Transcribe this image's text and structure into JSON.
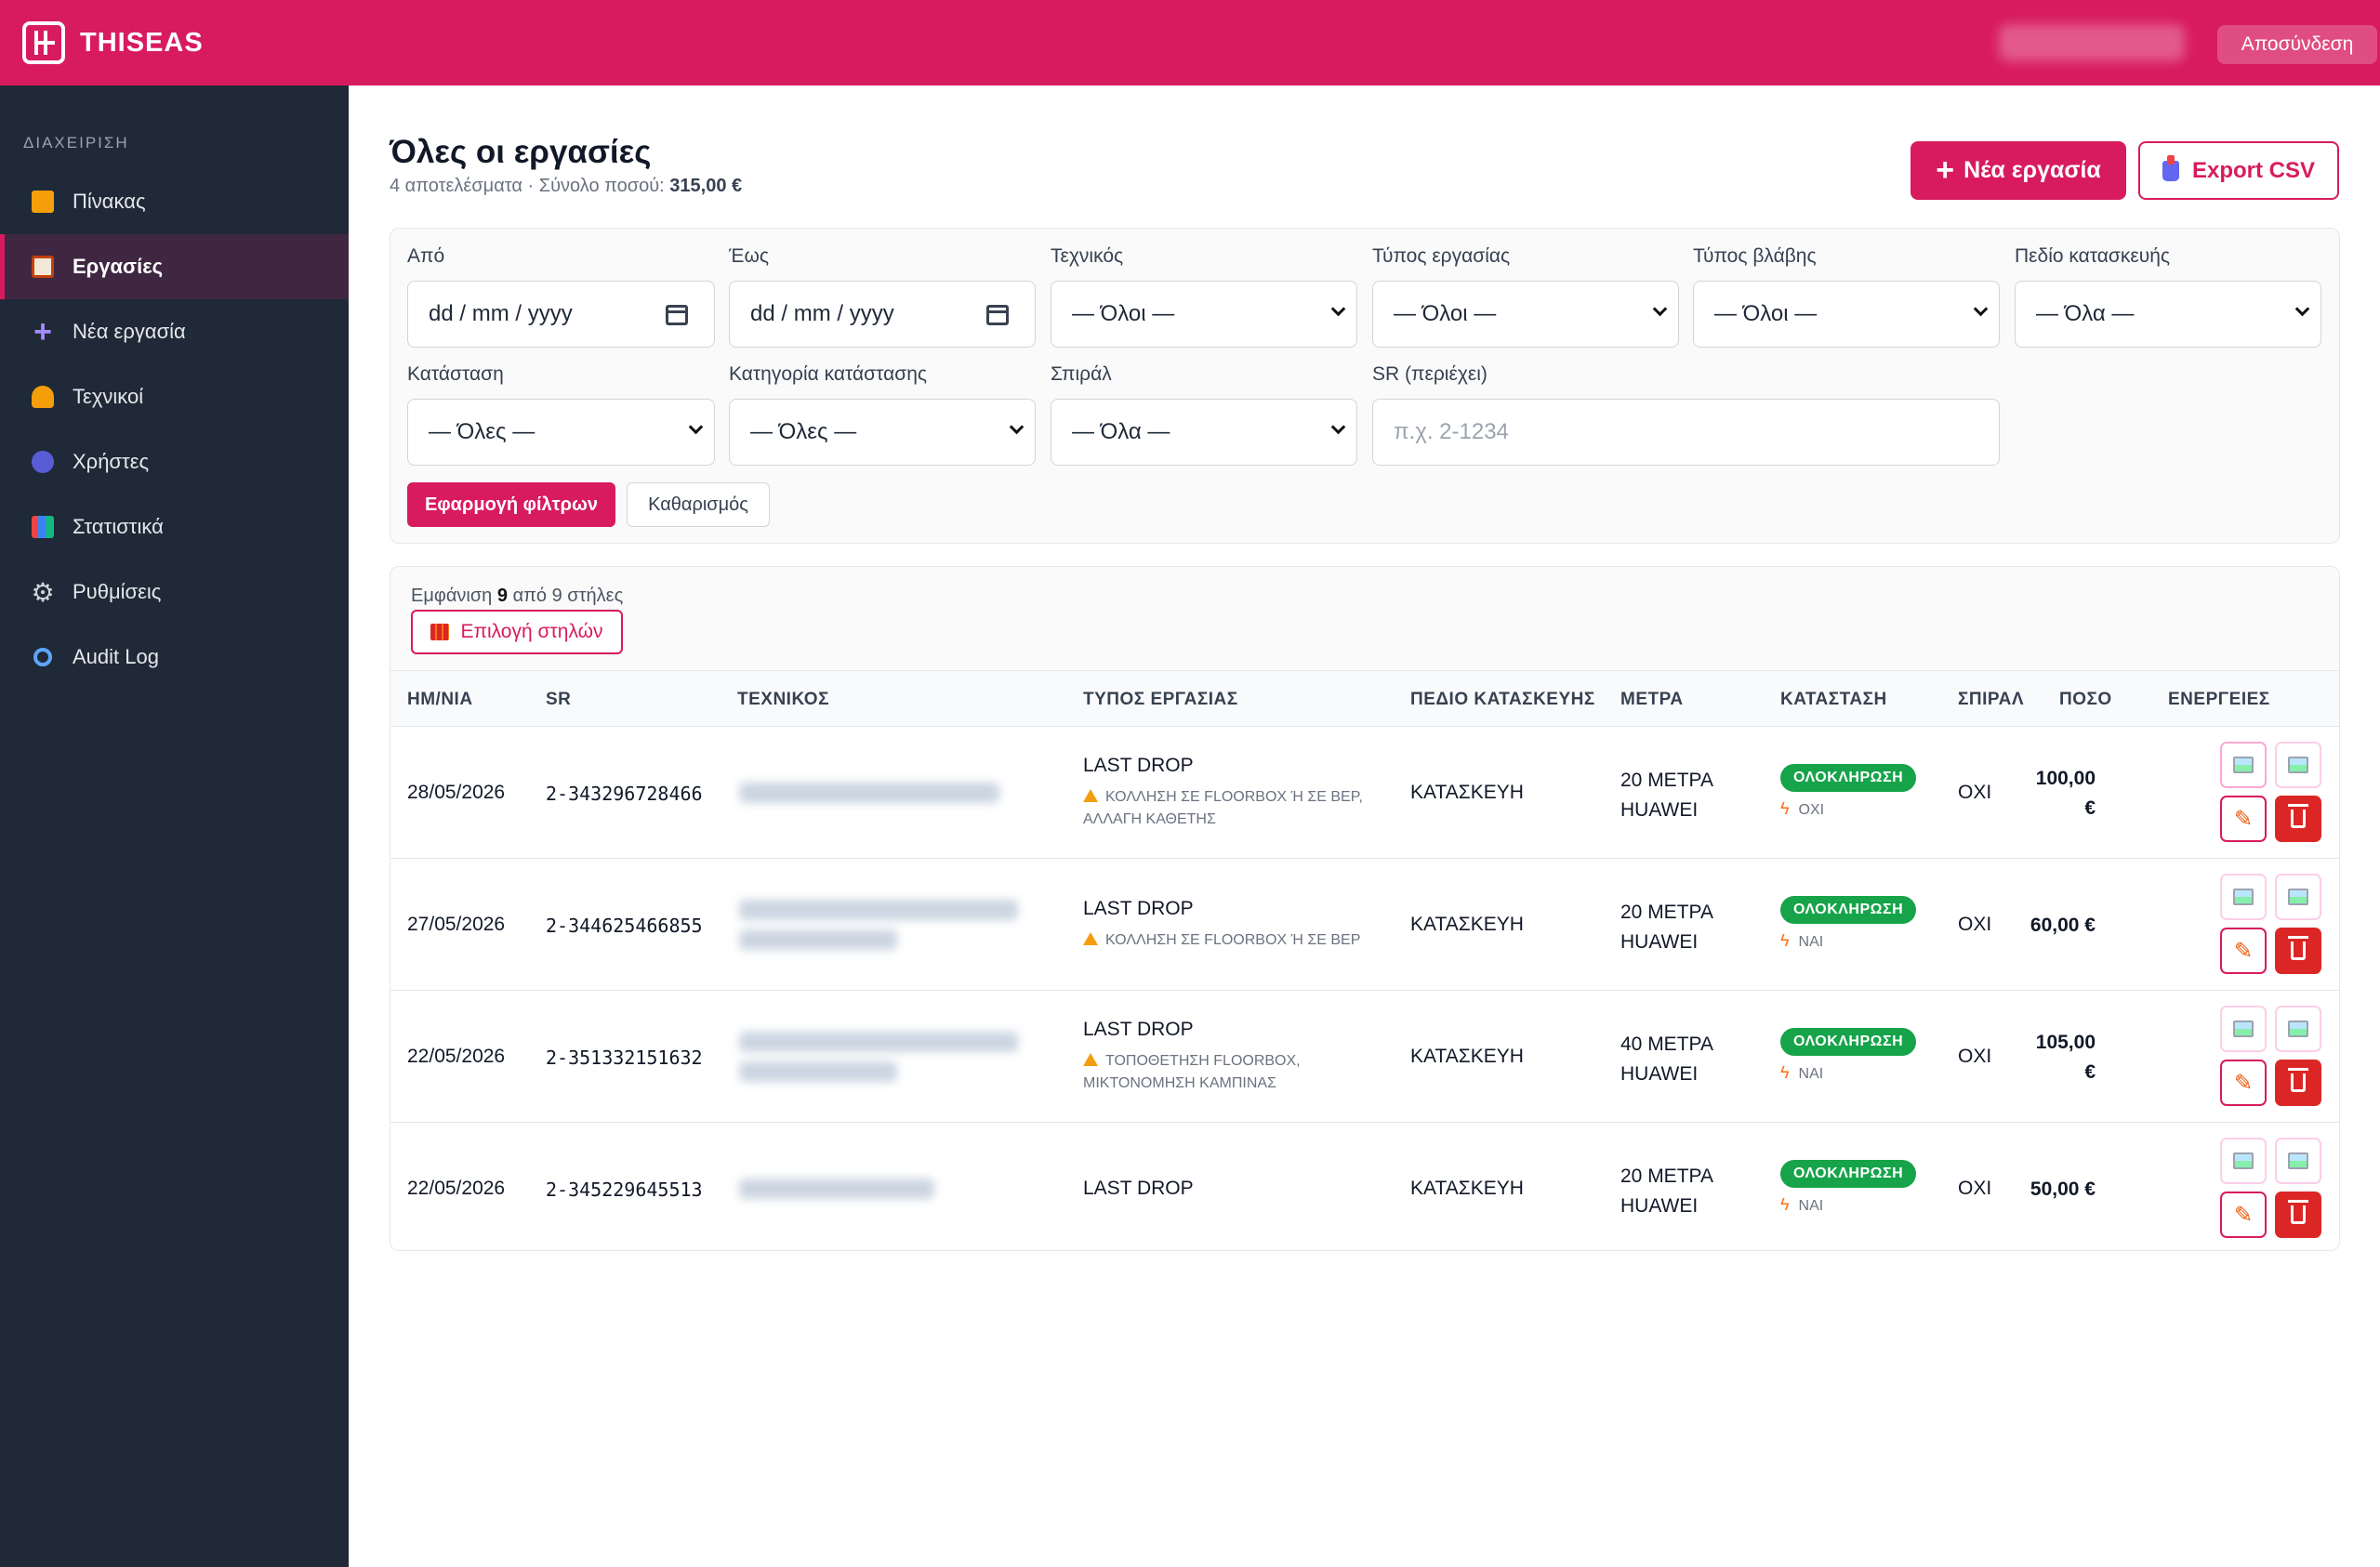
{
  "app": {
    "brand": "THISEAS",
    "logout": "Αποσύνδεση"
  },
  "sidebar": {
    "section": "ΔΙΑΧΕΙΡΙΣΗ",
    "items": [
      {
        "label": "Πίνακας",
        "icon": "house-icon"
      },
      {
        "label": "Εργασίες",
        "icon": "clipboard-icon",
        "active": true
      },
      {
        "label": "Νέα εργασία",
        "icon": "plus-icon"
      },
      {
        "label": "Τεχνικοί",
        "icon": "person-icon"
      },
      {
        "label": "Χρήστες",
        "icon": "users-icon"
      },
      {
        "label": "Στατιστικά",
        "icon": "bar-chart-icon"
      },
      {
        "label": "Ρυθμίσεις",
        "icon": "gear-icon"
      },
      {
        "label": "Audit Log",
        "icon": "magnifier-icon"
      }
    ]
  },
  "header": {
    "title": "Όλες οι εργασίες",
    "subtitle_prefix": "4 αποτελέσματα · Σύνολο ποσού:",
    "total": "315,00 €",
    "new_button": "Νέα εργασία",
    "export_button": "Export CSV"
  },
  "filters": {
    "from": {
      "label": "Από",
      "value": "dd / mm / yyyy"
    },
    "to": {
      "label": "Έως",
      "value": "dd / mm / yyyy"
    },
    "technician": {
      "label": "Τεχνικός",
      "value": "— Όλοι —"
    },
    "work_type": {
      "label": "Τύπος εργασίας",
      "value": "— Όλοι —"
    },
    "fault_type": {
      "label": "Τύπος βλάβης",
      "value": "— Όλοι —"
    },
    "field": {
      "label": "Πεδίο κατασκευής",
      "value": "— Όλα —"
    },
    "status": {
      "label": "Κατάσταση",
      "value": "— Όλες —"
    },
    "status_category": {
      "label": "Κατηγορία κατάστασης",
      "value": "— Όλες —"
    },
    "spiral": {
      "label": "Σπιράλ",
      "value": "— Όλα —"
    },
    "sr": {
      "label": "SR (περιέχει)",
      "placeholder": "π.χ. 2-1234"
    },
    "apply": "Εφαρμογή φίλτρων",
    "clear": "Καθαρισμός"
  },
  "columns_bar": {
    "prefix": "Εμφάνιση",
    "shown": "9",
    "suffix": "από 9 στήλες",
    "button": "Επιλογή στηλών"
  },
  "table": {
    "headers": [
      "ΗΜ/ΝΙΑ",
      "SR",
      "ΤΕΧΝΙΚΟΣ",
      "ΤΥΠΟΣ ΕΡΓΑΣΙΑΣ",
      "ΠΕΔΙΟ ΚΑΤΑΣΚΕΥΗΣ",
      "ΜΕΤΡΑ",
      "ΚΑΤΑΣΤΑΣΗ",
      "ΣΠΙΡΑΛ",
      "ΠΟΣΟ",
      "ΕΝΕΡΓΕΙΕΣ"
    ],
    "rows": [
      {
        "date": "28/05/2026",
        "sr": "2-343296728466",
        "work_type": "LAST DROP",
        "fault": "ΚΟΛΛΗΣΗ ΣΕ FLOORBOX Ή ΣΕ BEP, ΑΛΛΑΓΗ ΚΑΘΕΤΗΣ",
        "field": "ΚΑΤΑΣΚΕΥΗ",
        "meters_1": "20 ΜΕΤΡΑ",
        "meters_2": "HUAWEI",
        "status": "ΟΛΟΚΛΗΡΩΣΗ",
        "status_sub": "ΟΧΙ",
        "spiral": "ΟΧΙ",
        "amount_1": "100,00",
        "amount_2": "€"
      },
      {
        "date": "27/05/2026",
        "sr": "2-344625466855",
        "work_type": "LAST DROP",
        "fault": "ΚΟΛΛΗΣΗ ΣΕ FLOORBOX Ή ΣΕ BEP",
        "field": "ΚΑΤΑΣΚΕΥΗ",
        "meters_1": "20 ΜΕΤΡΑ",
        "meters_2": "HUAWEI",
        "status": "ΟΛΟΚΛΗΡΩΣΗ",
        "status_sub": "ΝΑΙ",
        "spiral": "ΟΧΙ",
        "amount_1": "60,00 €",
        "amount_2": ""
      },
      {
        "date": "22/05/2026",
        "sr": "2-351332151632",
        "work_type": "LAST DROP",
        "fault": "ΤΟΠΟΘΕΤΗΣΗ FLOORBOX, ΜΙΚΤΟΝΟΜΗΣΗ ΚΑΜΠΙΝΑΣ",
        "field": "ΚΑΤΑΣΚΕΥΗ",
        "meters_1": "40 ΜΕΤΡΑ",
        "meters_2": "HUAWEI",
        "status": "ΟΛΟΚΛΗΡΩΣΗ",
        "status_sub": "ΝΑΙ",
        "spiral": "ΟΧΙ",
        "amount_1": "105,00",
        "amount_2": "€"
      },
      {
        "date": "22/05/2026",
        "sr": "2-345229645513",
        "work_type": "LAST DROP",
        "fault": "",
        "field": "ΚΑΤΑΣΚΕΥΗ",
        "meters_1": "20 ΜΕΤΡΑ",
        "meters_2": "HUAWEI",
        "status": "ΟΛΟΚΛΗΡΩΣΗ",
        "status_sub": "ΝΑΙ",
        "spiral": "ΟΧΙ",
        "amount_1": "50,00 €",
        "amount_2": ""
      }
    ]
  },
  "colors": {
    "brand": "#d81b5e",
    "sidebar": "#1f2937",
    "success": "#16a34a",
    "danger": "#dc2626"
  }
}
